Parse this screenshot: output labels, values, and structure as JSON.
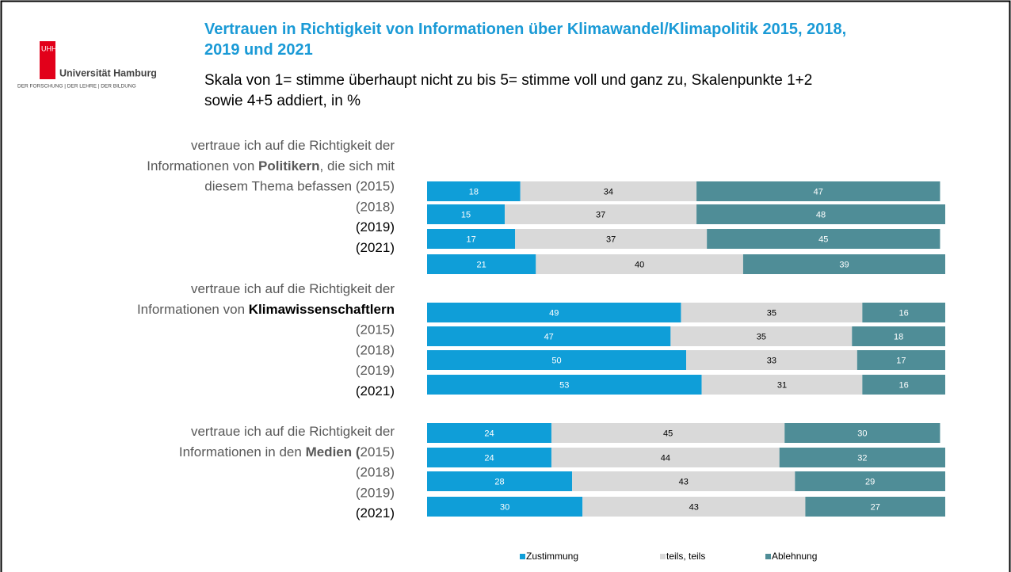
{
  "logo": {
    "mark": "UHH",
    "name": "Universität Hamburg",
    "motto": "DER FORSCHUNG | DER LEHRE | DER BILDUNG"
  },
  "chart_data": {
    "type": "stacked-bar-horizontal",
    "title": "Vertrauen in Richtigkeit von  Informationen über Klimawandel/Klimapolitik 2015, 2018, 2019 und 2021",
    "subtitle": "Skala von 1= stimme überhaupt nicht zu bis 5= stimme voll und ganz zu, Skalenpunkte 1+2 sowie 4+5 addiert, in %",
    "xlim": [
      0,
      100
    ],
    "groups": [
      {
        "lines": [
          [
            {
              "text": "vertraue ich auf die Richtigkeit der"
            }
          ],
          [
            {
              "text": "Informationen von "
            },
            {
              "text": "Politikern",
              "bold": true
            },
            {
              "text": ", die sich mit"
            }
          ],
          [
            {
              "text": "diesem Thema befassen (2015)"
            }
          ],
          [
            {
              "text": "(2018)"
            }
          ],
          [
            {
              "text": "(2019)",
              "color": "#000000"
            }
          ],
          [
            {
              "text": "(2021)",
              "color": "#000000"
            }
          ]
        ]
      },
      {
        "lines": [
          [
            {
              "text": "vertraue ich auf die Richtigkeit der"
            }
          ],
          [
            {
              "text": "Informationen von "
            },
            {
              "text": "Klimawissenschaftlern",
              "bold": true,
              "color": "#000000"
            }
          ],
          [
            {
              "text": "(2015)"
            }
          ],
          [
            {
              "text": "(2018)"
            }
          ],
          [
            {
              "text": "(2019)"
            }
          ],
          [
            {
              "text": "(2021)",
              "color": "#000000"
            }
          ]
        ]
      },
      {
        "lines": [
          [
            {
              "text": "vertraue ich auf die Richtigkeit der"
            }
          ],
          [
            {
              "text": "Informationen in den "
            },
            {
              "text": "Medien (",
              "bold": true
            },
            {
              "text": "2015)"
            }
          ],
          [
            {
              "text": "(2018)"
            }
          ],
          [
            {
              "text": "(2019)"
            }
          ],
          [
            {
              "text": "(2021)",
              "color": "#000000"
            }
          ]
        ]
      }
    ],
    "series": [
      {
        "name": "Zustimmung",
        "color": "#0f9ed8",
        "label_color": "#ffffff",
        "values": [
          18,
          15,
          17,
          21,
          49,
          47,
          50,
          53,
          24,
          24,
          28,
          30
        ]
      },
      {
        "name": "teils, teils",
        "color": "#d9d9d9",
        "label_color": "#000000",
        "values": [
          34,
          37,
          37,
          40,
          35,
          35,
          33,
          31,
          45,
          44,
          43,
          43
        ]
      },
      {
        "name": "Ablehnung",
        "color": "#4f8d97",
        "label_color": "#ffffff",
        "values": [
          47,
          48,
          45,
          39,
          16,
          18,
          17,
          16,
          30,
          32,
          29,
          27
        ]
      }
    ],
    "legend": "bottom"
  }
}
